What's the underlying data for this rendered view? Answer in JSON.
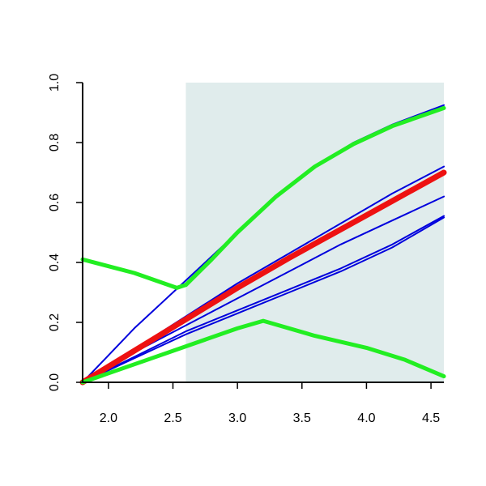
{
  "chart_data": {
    "type": "line",
    "title": "",
    "xlabel": "",
    "ylabel": "",
    "xlim": [
      1.8,
      4.6
    ],
    "ylim": [
      0.0,
      1.0
    ],
    "x_ticks": [
      2.0,
      2.5,
      3.0,
      3.5,
      4.0,
      4.5
    ],
    "x_tick_labels": [
      "2.0",
      "2.5",
      "3.0",
      "3.5",
      "4.0",
      "4.5"
    ],
    "y_ticks": [
      0.0,
      0.2,
      0.4,
      0.6,
      0.8,
      1.0
    ],
    "y_tick_labels": [
      "0.0",
      "0.2",
      "0.4",
      "0.6",
      "0.8",
      "1.0"
    ],
    "grid": false,
    "shaded_region": {
      "x_from": 2.6,
      "x_to": 4.6,
      "color": "#e0ecec"
    },
    "series": [
      {
        "color": "#0000dd",
        "width": 2,
        "points": [
          [
            1.8,
            0.0
          ],
          [
            2.0,
            0.09
          ],
          [
            2.2,
            0.18
          ],
          [
            2.4,
            0.26
          ],
          [
            2.55,
            0.32
          ],
          [
            2.8,
            0.42
          ],
          [
            3.0,
            0.5
          ],
          [
            3.3,
            0.62
          ],
          [
            3.6,
            0.72
          ],
          [
            3.9,
            0.8
          ],
          [
            4.2,
            0.86
          ],
          [
            4.6,
            0.925
          ]
        ]
      },
      {
        "color": "#0000dd",
        "width": 2,
        "points": [
          [
            1.8,
            0.0
          ],
          [
            2.2,
            0.11
          ],
          [
            2.6,
            0.22
          ],
          [
            3.0,
            0.33
          ],
          [
            3.4,
            0.43
          ],
          [
            3.8,
            0.53
          ],
          [
            4.2,
            0.63
          ],
          [
            4.6,
            0.72
          ]
        ]
      },
      {
        "color": "#0000dd",
        "width": 2,
        "points": [
          [
            1.8,
            0.0
          ],
          [
            2.2,
            0.1
          ],
          [
            2.6,
            0.19
          ],
          [
            3.0,
            0.28
          ],
          [
            3.4,
            0.37
          ],
          [
            3.8,
            0.46
          ],
          [
            4.2,
            0.54
          ],
          [
            4.6,
            0.62
          ]
        ]
      },
      {
        "color": "#0000dd",
        "width": 2,
        "points": [
          [
            1.8,
            0.0
          ],
          [
            2.2,
            0.085
          ],
          [
            2.6,
            0.17
          ],
          [
            3.0,
            0.24
          ],
          [
            3.4,
            0.31
          ],
          [
            3.8,
            0.38
          ],
          [
            4.2,
            0.46
          ],
          [
            4.6,
            0.555
          ]
        ]
      },
      {
        "color": "#0000dd",
        "width": 2,
        "points": [
          [
            1.8,
            0.0
          ],
          [
            2.2,
            0.08
          ],
          [
            2.6,
            0.16
          ],
          [
            3.0,
            0.23
          ],
          [
            3.4,
            0.3
          ],
          [
            3.8,
            0.37
          ],
          [
            4.2,
            0.45
          ],
          [
            4.6,
            0.55
          ]
        ]
      },
      {
        "color": "#ee1111",
        "width": 7,
        "points": [
          [
            1.8,
            0.0
          ],
          [
            2.2,
            0.105
          ],
          [
            2.6,
            0.21
          ],
          [
            3.0,
            0.315
          ],
          [
            3.4,
            0.415
          ],
          [
            3.8,
            0.51
          ],
          [
            4.2,
            0.605
          ],
          [
            4.6,
            0.7
          ]
        ]
      },
      {
        "color": "#22ee22",
        "width": 5,
        "points": [
          [
            1.8,
            0.41
          ],
          [
            2.2,
            0.365
          ],
          [
            2.53,
            0.315
          ],
          [
            2.6,
            0.325
          ],
          [
            2.8,
            0.41
          ],
          [
            3.0,
            0.5
          ],
          [
            3.3,
            0.62
          ],
          [
            3.6,
            0.72
          ],
          [
            3.9,
            0.795
          ],
          [
            4.2,
            0.855
          ],
          [
            4.6,
            0.915
          ]
        ]
      },
      {
        "color": "#22ee22",
        "width": 5,
        "points": [
          [
            1.8,
            0.0
          ],
          [
            2.2,
            0.06
          ],
          [
            2.6,
            0.12
          ],
          [
            3.0,
            0.18
          ],
          [
            3.2,
            0.205
          ],
          [
            3.6,
            0.155
          ],
          [
            4.0,
            0.115
          ],
          [
            4.3,
            0.075
          ],
          [
            4.6,
            0.02
          ]
        ]
      }
    ]
  }
}
